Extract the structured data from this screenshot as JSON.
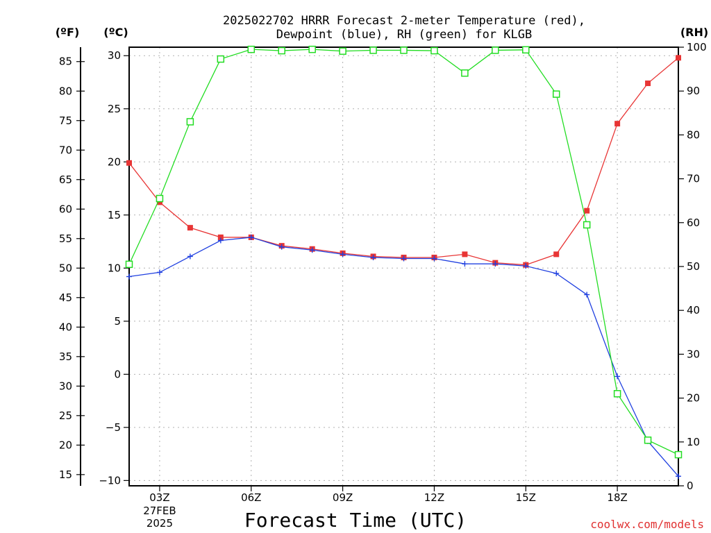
{
  "chart_data": {
    "type": "line",
    "title": [
      "2025022702 HRRR Forecast 2-meter Temperature (red),",
      "Dewpoint (blue), RH (green) for KLGB"
    ],
    "xlabel": "Forecast Time (UTC)",
    "unit_labels": {
      "fahrenheit": "(ºF)",
      "celsius": "(ºC)",
      "rh": "(RH)"
    },
    "credit": "coolwx.com/models",
    "x_hours": [
      2,
      3,
      4,
      5,
      6,
      7,
      8,
      9,
      10,
      11,
      12,
      13,
      14,
      15,
      16,
      17,
      18,
      19,
      20
    ],
    "x_ticks": [
      {
        "hour": 3,
        "label": "03Z",
        "sublabels": [
          "27FEB",
          "2025"
        ]
      },
      {
        "hour": 6,
        "label": "06Z",
        "sublabels": []
      },
      {
        "hour": 9,
        "label": "09Z",
        "sublabels": []
      },
      {
        "hour": 12,
        "label": "12Z",
        "sublabels": []
      },
      {
        "hour": 15,
        "label": "15Z",
        "sublabels": []
      },
      {
        "hour": 18,
        "label": "18Z",
        "sublabels": []
      }
    ],
    "xlim": [
      2,
      20
    ],
    "ylim_celsius": [
      -10.5,
      30.8
    ],
    "celsius_ticks": [
      -10,
      -5,
      0,
      5,
      10,
      15,
      20,
      25,
      30
    ],
    "celsius_tick_labels": [
      "−10",
      "−5",
      "0",
      "5",
      "10",
      "15",
      "20",
      "25",
      "30"
    ],
    "fahrenheit_ticks": [
      15,
      20,
      25,
      30,
      35,
      40,
      45,
      50,
      55,
      60,
      65,
      70,
      75,
      80,
      85
    ],
    "fahrenheit_tick_labels": [
      "15",
      "20",
      "25",
      "30",
      "35",
      "40",
      "45",
      "50",
      "55",
      "60",
      "65",
      "70",
      "75",
      "80",
      "85"
    ],
    "ylim_rh": [
      0,
      100
    ],
    "rh_ticks": [
      0,
      10,
      20,
      30,
      40,
      50,
      60,
      70,
      80,
      90,
      100
    ],
    "rh_tick_labels": [
      "0",
      "10",
      "20",
      "30",
      "40",
      "50",
      "60",
      "70",
      "80",
      "90",
      "100"
    ],
    "grid": true,
    "series": [
      {
        "name": "Temperature",
        "axis": "celsius",
        "color": "#e83535",
        "marker": "filled-square",
        "values": [
          19.9,
          16.2,
          13.8,
          12.9,
          12.9,
          12.1,
          11.8,
          11.4,
          11.1,
          11.0,
          11.0,
          11.3,
          10.5,
          10.3,
          11.3,
          15.4,
          23.6,
          27.4,
          29.8
        ]
      },
      {
        "name": "Dewpoint",
        "axis": "celsius",
        "color": "#2040e0",
        "marker": "plus",
        "values": [
          9.2,
          9.6,
          11.1,
          12.6,
          12.9,
          12.0,
          11.7,
          11.3,
          11.0,
          10.9,
          10.9,
          10.4,
          10.4,
          10.2,
          9.5,
          7.5,
          -0.2,
          -6.3,
          -9.6
        ]
      },
      {
        "name": "RH",
        "axis": "rh",
        "color": "#22dd22",
        "marker": "open-square",
        "values": [
          50.5,
          65.5,
          83.0,
          97.3,
          99.5,
          99.2,
          99.5,
          99.1,
          99.3,
          99.3,
          99.2,
          94.1,
          99.3,
          99.4,
          89.3,
          59.5,
          21.0,
          10.4,
          7.1
        ]
      }
    ]
  }
}
